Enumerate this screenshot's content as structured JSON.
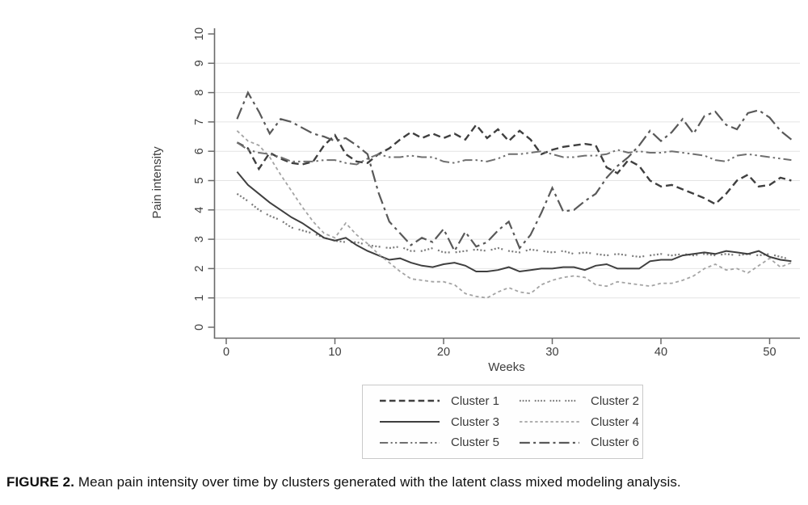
{
  "figure_caption": {
    "label": "FIGURE 2.",
    "text": "Mean pain intensity over time by clusters generated with the latent class mixed modeling analysis."
  },
  "chart_data": {
    "type": "line",
    "title": "",
    "xlabel": "Weeks",
    "ylabel": "Pain intensity",
    "xlim": [
      0,
      53
    ],
    "ylim": [
      0,
      10
    ],
    "xticks": [
      0,
      10,
      20,
      30,
      40,
      50
    ],
    "yticks": [
      0,
      1,
      2,
      3,
      4,
      5,
      6,
      7,
      8,
      9,
      10
    ],
    "grid": "horizontal-light-gray",
    "legend_position": "boxed-below-two-columns",
    "x": [
      1,
      2,
      3,
      4,
      5,
      6,
      7,
      8,
      9,
      10,
      11,
      12,
      13,
      14,
      15,
      16,
      17,
      18,
      19,
      20,
      21,
      22,
      23,
      24,
      25,
      26,
      27,
      28,
      29,
      30,
      31,
      32,
      33,
      34,
      35,
      36,
      37,
      38,
      39,
      40,
      41,
      42,
      43,
      44,
      45,
      46,
      47,
      48,
      49,
      50,
      51,
      52
    ],
    "series": [
      {
        "name": "Cluster 1",
        "color": "#3f3f3f",
        "dash": "dash",
        "values": [
          6.3,
          6.1,
          5.4,
          5.95,
          5.75,
          5.6,
          5.55,
          5.65,
          6.2,
          6.55,
          5.9,
          5.65,
          5.6,
          5.9,
          6.1,
          6.4,
          6.65,
          6.45,
          6.6,
          6.45,
          6.6,
          6.4,
          6.9,
          6.45,
          6.75,
          6.35,
          6.7,
          6.4,
          5.9,
          6.05,
          6.15,
          6.2,
          6.25,
          6.2,
          5.45,
          5.25,
          5.7,
          5.5,
          5.0,
          4.8,
          4.85,
          4.7,
          4.55,
          4.4,
          4.2,
          4.55,
          5.0,
          5.2,
          4.8,
          4.85,
          5.1,
          5.0
        ]
      },
      {
        "name": "Cluster 2",
        "color": "#7b7b7b",
        "dash": "grouped-dot",
        "values": [
          4.55,
          4.3,
          4.0,
          3.8,
          3.65,
          3.4,
          3.3,
          3.2,
          3.05,
          2.95,
          2.9,
          2.9,
          2.8,
          2.75,
          2.7,
          2.75,
          2.6,
          2.6,
          2.7,
          2.55,
          2.55,
          2.6,
          2.65,
          2.6,
          2.7,
          2.6,
          2.55,
          2.65,
          2.6,
          2.55,
          2.6,
          2.5,
          2.55,
          2.5,
          2.45,
          2.5,
          2.45,
          2.4,
          2.45,
          2.5,
          2.45,
          2.5,
          2.45,
          2.5,
          2.45,
          2.5,
          2.45,
          2.5,
          2.45,
          2.5,
          2.4,
          2.3
        ]
      },
      {
        "name": "Cluster 3",
        "color": "#3f3f3f",
        "dash": "solid",
        "values": [
          5.3,
          4.85,
          4.55,
          4.25,
          4.0,
          3.75,
          3.55,
          3.3,
          3.05,
          2.95,
          3.05,
          2.8,
          2.6,
          2.45,
          2.3,
          2.35,
          2.2,
          2.1,
          2.05,
          2.15,
          2.2,
          2.1,
          1.9,
          1.9,
          1.95,
          2.05,
          1.9,
          1.95,
          2.0,
          2.0,
          2.05,
          2.05,
          1.95,
          2.1,
          2.15,
          2.0,
          2.0,
          2.0,
          2.25,
          2.3,
          2.3,
          2.45,
          2.5,
          2.55,
          2.5,
          2.6,
          2.55,
          2.5,
          2.6,
          2.4,
          2.3,
          2.25
        ]
      },
      {
        "name": "Cluster 4",
        "color": "#a4a4a4",
        "dash": "short-dash",
        "values": [
          6.7,
          6.35,
          6.2,
          5.8,
          5.2,
          4.65,
          4.1,
          3.6,
          3.2,
          3.05,
          3.55,
          3.15,
          2.85,
          2.5,
          2.2,
          1.9,
          1.65,
          1.6,
          1.55,
          1.55,
          1.45,
          1.15,
          1.05,
          1.0,
          1.2,
          1.35,
          1.2,
          1.15,
          1.45,
          1.6,
          1.7,
          1.75,
          1.7,
          1.45,
          1.4,
          1.55,
          1.5,
          1.45,
          1.4,
          1.5,
          1.5,
          1.6,
          1.75,
          2.0,
          2.15,
          1.95,
          2.0,
          1.85,
          2.1,
          2.35,
          2.05,
          2.2
        ]
      },
      {
        "name": "Cluster 5",
        "color": "#6f6f6f",
        "dash": "dash-dot-dot",
        "values": [
          6.3,
          6.05,
          5.95,
          5.9,
          5.8,
          5.65,
          5.65,
          5.65,
          5.7,
          5.7,
          5.6,
          5.55,
          5.75,
          5.9,
          5.8,
          5.8,
          5.85,
          5.8,
          5.8,
          5.65,
          5.6,
          5.7,
          5.7,
          5.65,
          5.75,
          5.9,
          5.9,
          5.95,
          6.0,
          5.9,
          5.8,
          5.8,
          5.85,
          5.85,
          5.9,
          6.05,
          5.95,
          6.0,
          5.95,
          5.95,
          6.0,
          5.95,
          5.9,
          5.85,
          5.7,
          5.65,
          5.85,
          5.9,
          5.85,
          5.8,
          5.75,
          5.7
        ]
      },
      {
        "name": "Cluster 6",
        "color": "#595959",
        "dash": "long-dash-dot",
        "values": [
          7.1,
          8.0,
          7.35,
          6.6,
          7.1,
          7.0,
          6.8,
          6.6,
          6.5,
          6.35,
          6.45,
          6.2,
          5.9,
          4.6,
          3.6,
          3.2,
          2.8,
          3.05,
          2.9,
          3.35,
          2.6,
          3.25,
          2.75,
          2.9,
          3.3,
          3.6,
          2.7,
          3.15,
          3.9,
          4.75,
          3.95,
          4.0,
          4.3,
          4.55,
          5.1,
          5.5,
          5.8,
          6.2,
          6.7,
          6.35,
          6.65,
          7.1,
          6.6,
          7.2,
          7.35,
          6.9,
          6.75,
          7.3,
          7.4,
          7.15,
          6.7,
          6.4
        ]
      }
    ],
    "axis_color": "#6a6a6a",
    "grid_color": "#e4e4e4",
    "tick_text_color": "#3d3d3d"
  }
}
